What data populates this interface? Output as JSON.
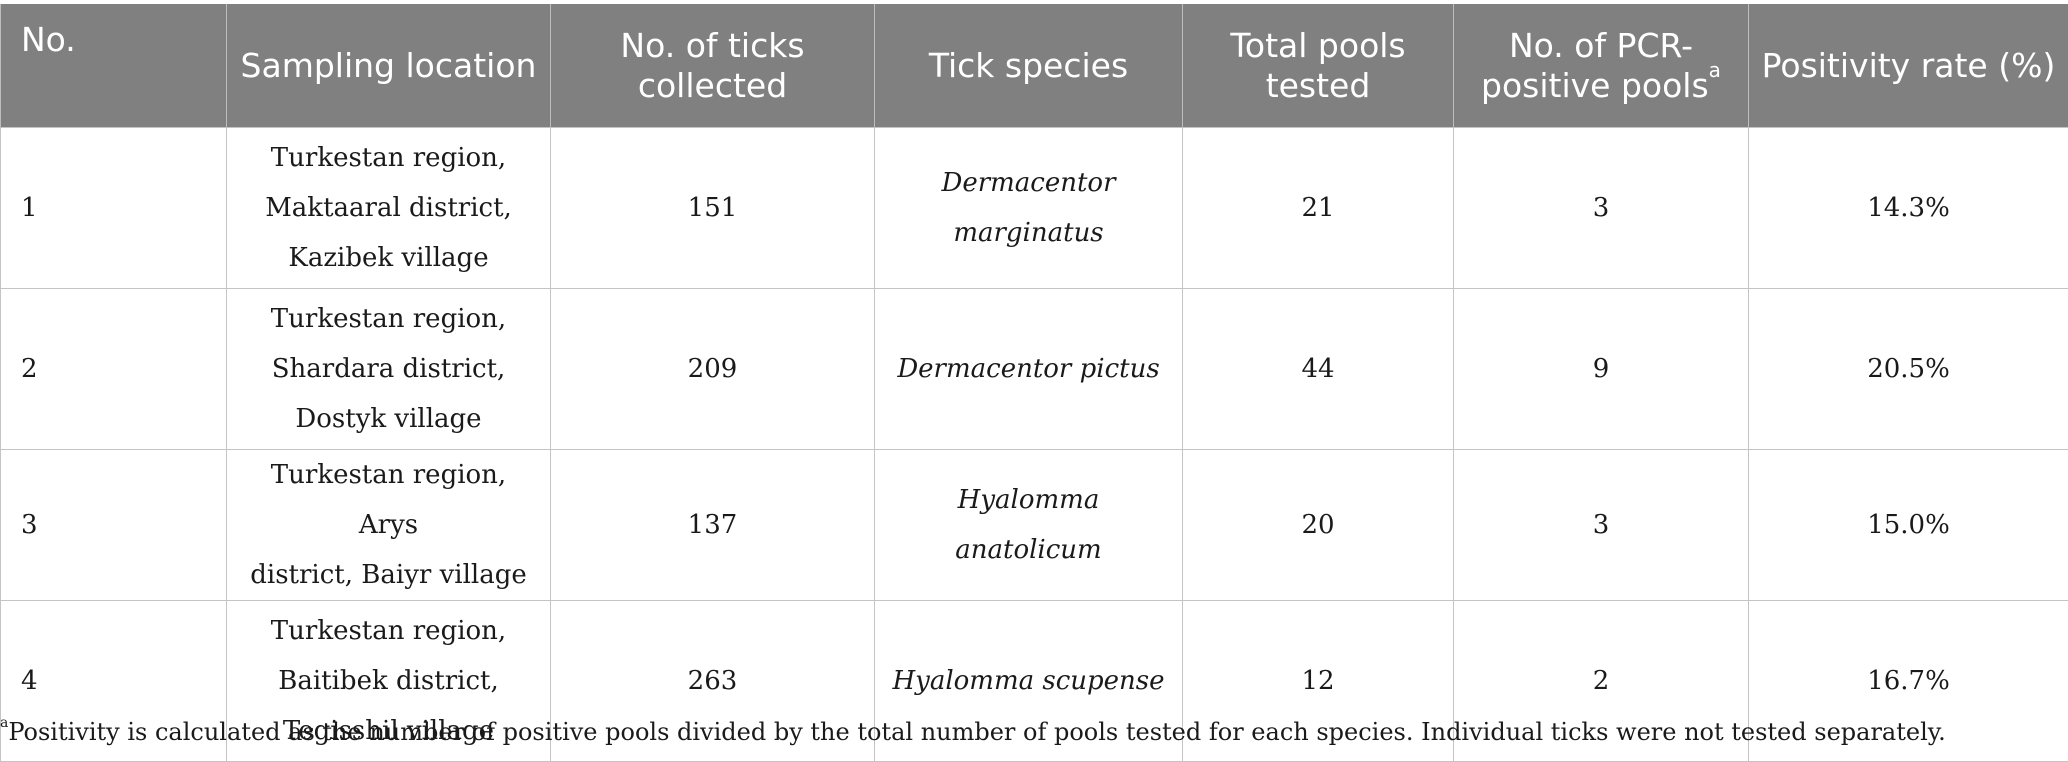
{
  "table": {
    "headers": [
      {
        "text": "No.",
        "sup": ""
      },
      {
        "text": "Sampling location",
        "sup": ""
      },
      {
        "text": "No. of ticks collected",
        "sup": ""
      },
      {
        "text": "Tick species",
        "sup": ""
      },
      {
        "text": "Total pools tested",
        "sup": ""
      },
      {
        "text": "No. of PCR-positive pools",
        "sup": "a"
      },
      {
        "text": "Positivity rate (%)",
        "sup": ""
      }
    ],
    "rows": [
      {
        "no": "1",
        "location": [
          "Turkestan region,",
          "Maktaaral district,",
          "Kazibek village"
        ],
        "ticks": "151",
        "species": [
          "Dermacentor",
          "marginatus"
        ],
        "pools": "21",
        "positive": "3",
        "rate": "14.3%"
      },
      {
        "no": "2",
        "location": [
          "Turkestan region,",
          "Shardara district,",
          "Dostyk village"
        ],
        "ticks": "209",
        "species": [
          "Dermacentor pictus"
        ],
        "pools": "44",
        "positive": "9",
        "rate": "20.5%"
      },
      {
        "no": "3",
        "location": [
          "Turkestan region, Arys",
          "district, Baiyr village"
        ],
        "ticks": "137",
        "species": [
          "Hyalomma anatolicum"
        ],
        "pools": "20",
        "positive": "3",
        "rate": "15.0%"
      },
      {
        "no": "4",
        "location": [
          "Turkestan region,",
          "Baitibek district,",
          "Tegisshil village"
        ],
        "ticks": "263",
        "species": [
          "Hyalomma scupense"
        ],
        "pools": "12",
        "positive": "2",
        "rate": "16.7%"
      }
    ]
  },
  "footnote": {
    "marker": "a",
    "text": "Positivity is calculated as the number of positive pools divided by the total number of pools tested for each species. Individual ticks were not tested separately."
  },
  "colors": {
    "header_bg": "#808080",
    "header_text": "#ffffff",
    "grid": "#c4c4c4"
  }
}
